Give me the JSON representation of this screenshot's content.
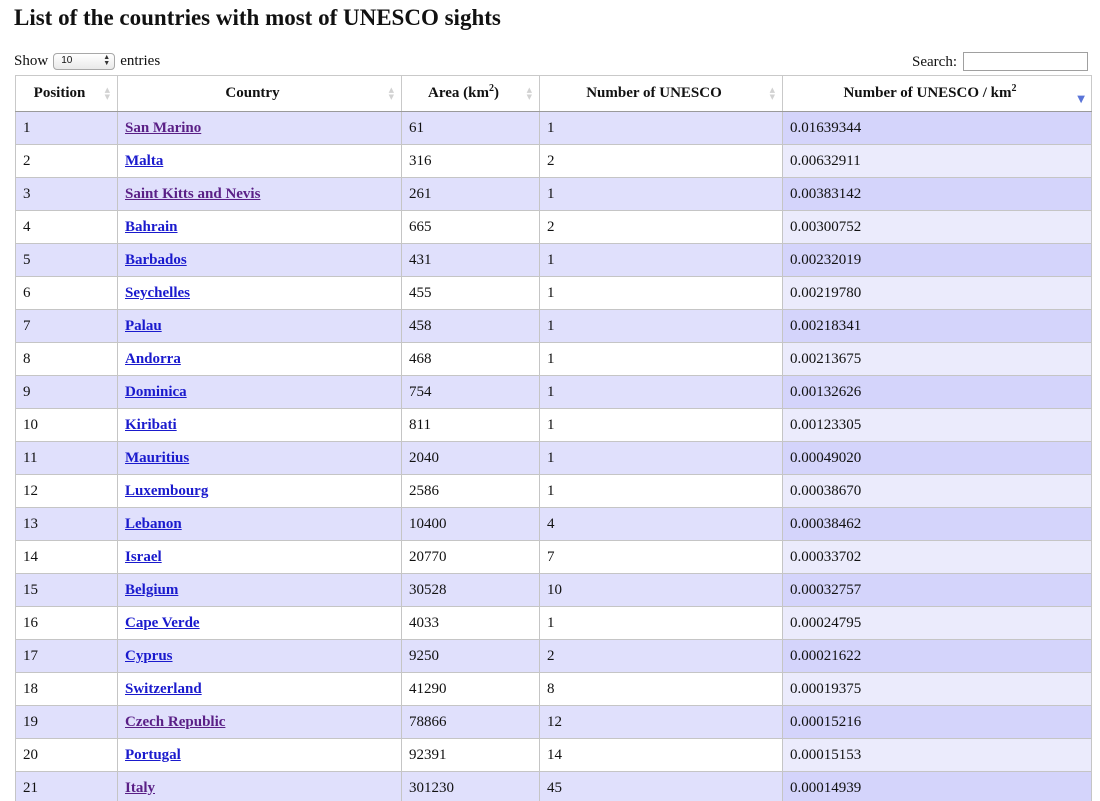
{
  "title": "List of the countries with most of UNESCO sights",
  "length": {
    "show_label": "Show",
    "value": "10",
    "entries_label": "entries"
  },
  "search": {
    "label": "Search:",
    "value": ""
  },
  "columns": {
    "position": "Position",
    "country": "Country",
    "area": "Area (km",
    "area_sup": "2",
    "area_close": ")",
    "unesco": "Number of UNESCO",
    "density": "Number of UNESCO / km",
    "density_sup": "2"
  },
  "colors": {
    "link": "#1a1acd",
    "visited_link": "#5a1f86",
    "odd_row": "#e0e0fc",
    "sorted_odd": "#d4d4fb",
    "sorted_even": "#ebebfc",
    "sort_active": "#5a74d8"
  },
  "icons": {
    "sort_both": "sort-both-icon",
    "sort_desc": "sort-desc-icon",
    "select_arrows": "select-arrows-icon"
  },
  "rows": [
    {
      "position": "1",
      "country": "San Marino",
      "area": "61",
      "unesco": "1",
      "density": "0.01639344",
      "visited": true
    },
    {
      "position": "2",
      "country": "Malta",
      "area": "316",
      "unesco": "2",
      "density": "0.00632911",
      "visited": false
    },
    {
      "position": "3",
      "country": "Saint Kitts and Nevis",
      "area": "261",
      "unesco": "1",
      "density": "0.00383142",
      "visited": true
    },
    {
      "position": "4",
      "country": "Bahrain",
      "area": "665",
      "unesco": "2",
      "density": "0.00300752",
      "visited": false
    },
    {
      "position": "5",
      "country": "Barbados",
      "area": "431",
      "unesco": "1",
      "density": "0.00232019",
      "visited": false
    },
    {
      "position": "6",
      "country": "Seychelles",
      "area": "455",
      "unesco": "1",
      "density": "0.00219780",
      "visited": false
    },
    {
      "position": "7",
      "country": "Palau",
      "area": "458",
      "unesco": "1",
      "density": "0.00218341",
      "visited": false
    },
    {
      "position": "8",
      "country": "Andorra",
      "area": "468",
      "unesco": "1",
      "density": "0.00213675",
      "visited": false
    },
    {
      "position": "9",
      "country": "Dominica",
      "area": "754",
      "unesco": "1",
      "density": "0.00132626",
      "visited": false
    },
    {
      "position": "10",
      "country": "Kiribati",
      "area": "811",
      "unesco": "1",
      "density": "0.00123305",
      "visited": false
    },
    {
      "position": "11",
      "country": "Mauritius",
      "area": "2040",
      "unesco": "1",
      "density": "0.00049020",
      "visited": false
    },
    {
      "position": "12",
      "country": "Luxembourg",
      "area": "2586",
      "unesco": "1",
      "density": "0.00038670",
      "visited": false
    },
    {
      "position": "13",
      "country": "Lebanon",
      "area": "10400",
      "unesco": "4",
      "density": "0.00038462",
      "visited": false
    },
    {
      "position": "14",
      "country": "Israel",
      "area": "20770",
      "unesco": "7",
      "density": "0.00033702",
      "visited": false
    },
    {
      "position": "15",
      "country": "Belgium",
      "area": "30528",
      "unesco": "10",
      "density": "0.00032757",
      "visited": false
    },
    {
      "position": "16",
      "country": "Cape Verde",
      "area": "4033",
      "unesco": "1",
      "density": "0.00024795",
      "visited": false
    },
    {
      "position": "17",
      "country": "Cyprus",
      "area": "9250",
      "unesco": "2",
      "density": "0.00021622",
      "visited": false
    },
    {
      "position": "18",
      "country": "Switzerland",
      "area": "41290",
      "unesco": "8",
      "density": "0.00019375",
      "visited": false
    },
    {
      "position": "19",
      "country": "Czech Republic",
      "area": "78866",
      "unesco": "12",
      "density": "0.00015216",
      "visited": true
    },
    {
      "position": "20",
      "country": "Portugal",
      "area": "92391",
      "unesco": "14",
      "density": "0.00015153",
      "visited": false
    },
    {
      "position": "21",
      "country": "Italy",
      "area": "301230",
      "unesco": "45",
      "density": "0.00014939",
      "visited": true
    }
  ]
}
